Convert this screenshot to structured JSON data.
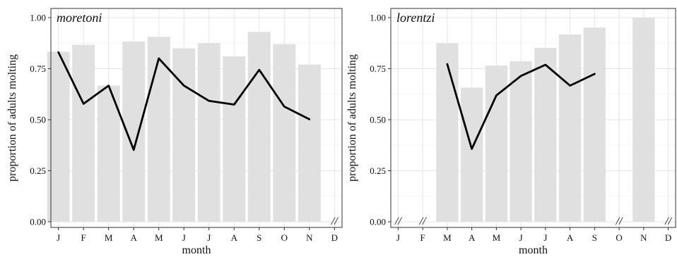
{
  "chart_data": [
    {
      "type": "bar",
      "title": "moretoni",
      "xlabel": "month",
      "ylabel": "proportion of adults molting",
      "categories": [
        "J",
        "F",
        "M",
        "A",
        "M",
        "J",
        "J",
        "A",
        "S",
        "O",
        "N",
        "D"
      ],
      "ylim": [
        0,
        1
      ],
      "yticks": [
        "0.00",
        "0.25",
        "0.50",
        "0.75",
        "1.00"
      ],
      "grid": true,
      "series": [
        {
          "type": "bar",
          "color": "#e0e0e0",
          "values": [
            0.833,
            0.867,
            0.667,
            0.883,
            0.906,
            0.85,
            0.875,
            0.81,
            0.93,
            0.87,
            0.77,
            null
          ]
        },
        {
          "type": "line",
          "color": "#000000",
          "values": [
            0.83,
            0.578,
            0.667,
            0.352,
            0.8,
            0.667,
            0.592,
            0.574,
            0.744,
            0.564,
            0.502,
            null
          ]
        }
      ],
      "missing_marker": "//",
      "missing_months": [
        "D"
      ]
    },
    {
      "type": "bar",
      "title": "lorentzi",
      "xlabel": "month",
      "ylabel": "proportion of adults molting",
      "categories": [
        "J",
        "F",
        "M",
        "A",
        "M",
        "J",
        "J",
        "A",
        "S",
        "O",
        "N",
        "D"
      ],
      "ylim": [
        0,
        1
      ],
      "yticks": [
        "0.00",
        "0.25",
        "0.50",
        "0.75",
        "1.00"
      ],
      "grid": true,
      "series": [
        {
          "type": "bar",
          "color": "#e0e0e0",
          "values": [
            null,
            null,
            0.875,
            0.657,
            0.765,
            0.786,
            0.852,
            0.917,
            0.951,
            null,
            1.0,
            null
          ]
        },
        {
          "type": "line",
          "color": "#000000",
          "values": [
            null,
            null,
            0.772,
            0.357,
            0.619,
            0.714,
            0.769,
            0.667,
            0.724,
            null,
            null,
            null
          ]
        }
      ],
      "missing_marker": "//",
      "missing_months": [
        "J",
        "F",
        "O",
        "D"
      ]
    }
  ]
}
